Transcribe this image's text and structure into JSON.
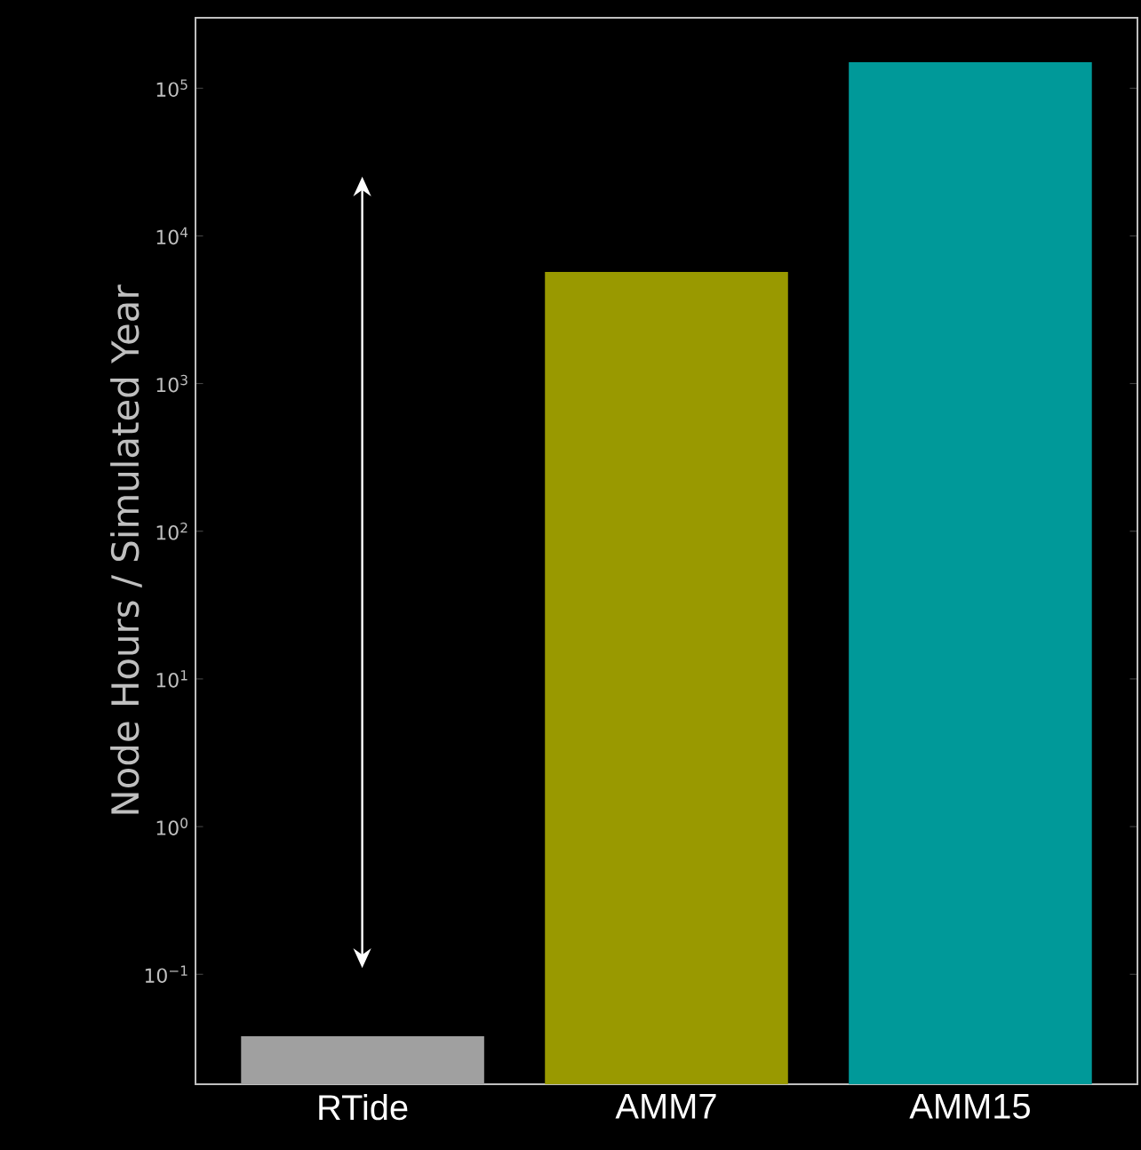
{
  "chart_data": {
    "type": "bar",
    "ylabel": "Node Hours / Simulated Year",
    "log": "y",
    "categories": [
      "RTide",
      "AMM7",
      "AMM15"
    ],
    "colors": [
      "#a0a0a0",
      "#999900",
      "#009999"
    ],
    "values": [
      0.038,
      5700,
      150000
    ],
    "ylim": [
      0.018,
      300000
    ],
    "yticks": [
      {
        "value": 0.1,
        "label": "10$^{−1}$"
      },
      {
        "value": 1,
        "label": "10$^{0}$"
      },
      {
        "value": 10,
        "label": "10$^{1}$"
      },
      {
        "value": 100,
        "label": "10$^{2}$"
      },
      {
        "value": 1000,
        "label": "10$^{3}$"
      },
      {
        "value": 10000,
        "label": "10$^{4}$"
      },
      {
        "value": 100000,
        "label": "10$^{5}$"
      }
    ]
  }
}
